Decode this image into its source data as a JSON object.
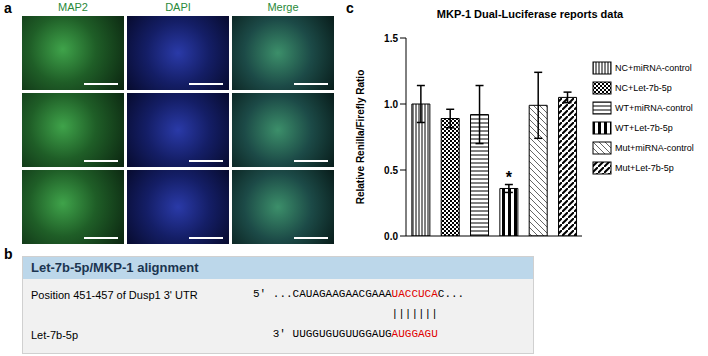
{
  "panels": {
    "a": {
      "letter": "a",
      "columns": [
        "MAP2",
        "DAPI",
        "Merge"
      ],
      "rows": 3
    },
    "b": {
      "letter": "b",
      "title": "Let-7b-5p/MKP-1 alignment",
      "target": {
        "name": "Position 451-457 of Dusp1 3' UTR",
        "prefix": "5' ...CAUAGAAGAACGAAA",
        "seed": "UACCUCA",
        "suffix": "C..."
      },
      "mirna": {
        "name": "Let-7b-5p",
        "prefix": "3' UUGGUGUGUUGGAUG",
        "seed": "AUGGAGU"
      },
      "pairing": "|||||||"
    },
    "c": {
      "letter": "c"
    }
  },
  "chart_data": {
    "type": "bar",
    "title": "MKP-1 Dual-Luciferase reports data",
    "y_label": "Relative Renilla/Firefly Ratio",
    "categories": [
      "NC+miRNA-control",
      "NC+Let-7b-5p",
      "WT+miRNA-control",
      "WT+Let-7b-5p",
      "Mut+miRNA-control",
      "Mut+Let-7b-5p"
    ],
    "values": [
      1.0,
      0.89,
      0.92,
      0.36,
      0.99,
      1.05
    ],
    "errors": [
      0.14,
      0.07,
      0.22,
      0.03,
      0.25,
      0.04
    ],
    "ylim": [
      0,
      1.5
    ],
    "yticks": [
      {
        "value": 0,
        "label": "0.0"
      },
      {
        "value": 0.5,
        "label": "0.5"
      },
      {
        "value": 1,
        "label": "1.0"
      },
      {
        "value": 1.5,
        "label": "1.5"
      }
    ],
    "legend": "right",
    "tick_labels": "y",
    "color": "#000000",
    "annotations": [
      {
        "text": "*",
        "category": "WT+Let-7b-5p"
      }
    ]
  }
}
